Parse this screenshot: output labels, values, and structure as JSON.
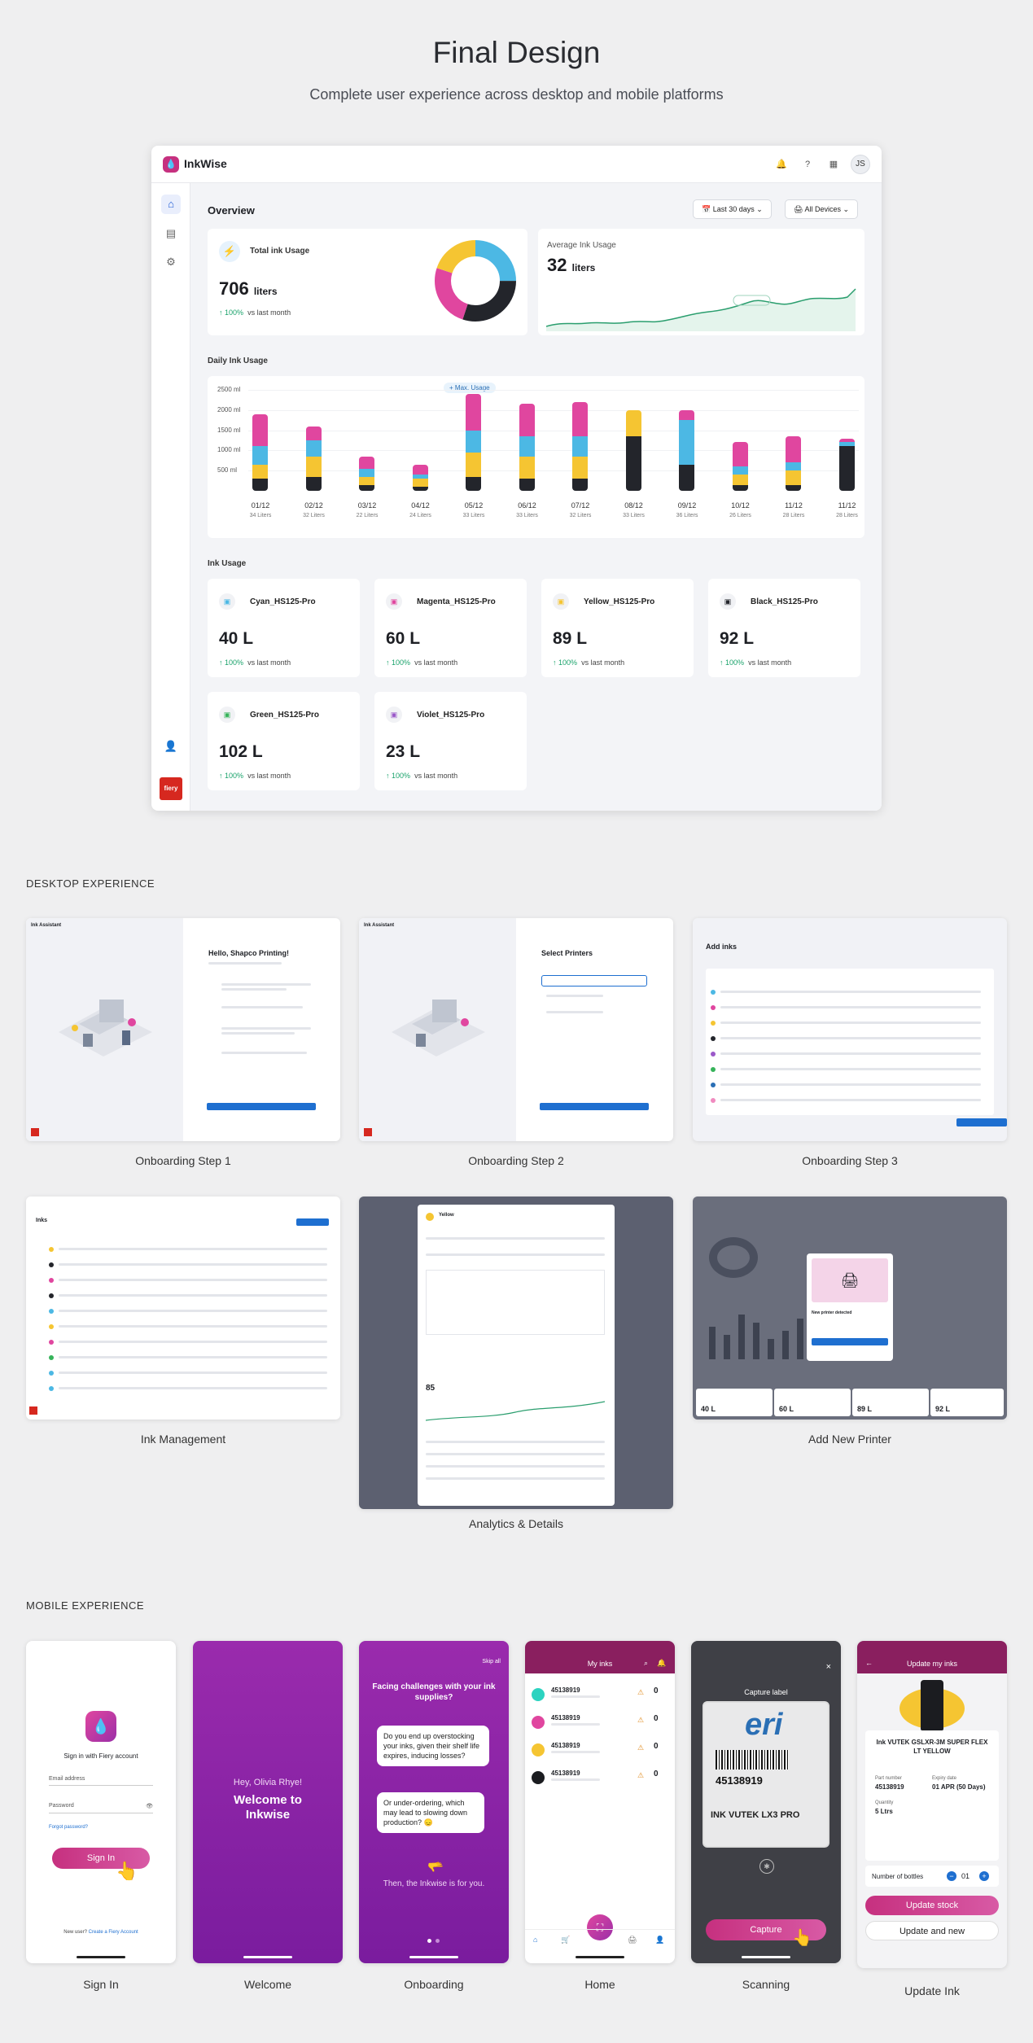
{
  "header": {
    "title": "Final Design",
    "subtitle": "Complete user experience across desktop and mobile platforms"
  },
  "dashboard": {
    "brand": "InkWise",
    "avatar": "JS",
    "overview": "Overview",
    "filter_date": "Last 30 days",
    "filter_devices": "All Devices",
    "total": {
      "label": "Total ink Usage",
      "value": "706",
      "unit": "liters",
      "pct": "100%",
      "vs": "vs last month"
    },
    "average": {
      "label": "Average Ink Usage",
      "value": "32",
      "unit": "liters"
    },
    "donut": [
      {
        "color": "#4cb8e4",
        "value": 25
      },
      {
        "color": "#23252b",
        "value": 30
      },
      {
        "color": "#e0469f",
        "value": 25
      },
      {
        "color": "#f5c532",
        "value": 20
      }
    ],
    "daily_title": "Daily Ink Usage",
    "max_usage": "Max. Usage",
    "ink_usage_title": "Ink Usage",
    "inks": [
      {
        "name": "Cyan_HS125-Pro",
        "value": "40 L",
        "pct": "100%",
        "vs": "vs last month",
        "color": "#4cb8e4"
      },
      {
        "name": "Magenta_HS125-Pro",
        "value": "60 L",
        "pct": "100%",
        "vs": "vs last month",
        "color": "#e0469f"
      },
      {
        "name": "Yellow_HS125-Pro",
        "value": "89 L",
        "pct": "100%",
        "vs": "vs last month",
        "color": "#f5c532"
      },
      {
        "name": "Black_HS125-Pro",
        "value": "92 L",
        "pct": "100%",
        "vs": "vs last month",
        "color": "#23252b"
      },
      {
        "name": "Green_HS125-Pro",
        "value": "102 L",
        "pct": "100%",
        "vs": "vs last month",
        "color": "#36b35a"
      },
      {
        "name": "Violet_HS125-Pro",
        "value": "23 L",
        "pct": "100%",
        "vs": "vs last month",
        "color": "#9b59c9"
      }
    ]
  },
  "chart_data": {
    "type": "bar",
    "stacked": true,
    "categories": [
      "01/12",
      "02/12",
      "03/12",
      "04/12",
      "05/12",
      "06/12",
      "07/12",
      "08/12",
      "09/12",
      "10/12",
      "11/12",
      "11/12"
    ],
    "sublabels": [
      "34 Liters",
      "32 Liters",
      "22 Liters",
      "24 Liters",
      "33 Liters",
      "33 Liters",
      "32 Liters",
      "33 Liters",
      "36 Liters",
      "26 Liters",
      "28 Liters",
      "28 Liters"
    ],
    "yticks": [
      "2500 ml",
      "2000 ml",
      "1500 ml",
      "1000 ml",
      "500 ml"
    ],
    "ylim": [
      0,
      2500
    ],
    "series": [
      {
        "color": "#23252b",
        "values": [
          300,
          350,
          150,
          100,
          350,
          300,
          300,
          1350,
          650,
          150,
          150,
          1100
        ]
      },
      {
        "color": "#f5c532",
        "values": [
          350,
          500,
          200,
          200,
          600,
          550,
          550,
          650,
          0,
          250,
          350,
          0
        ]
      },
      {
        "color": "#4cb8e4",
        "values": [
          450,
          400,
          200,
          100,
          550,
          500,
          500,
          0,
          1100,
          200,
          200,
          100
        ]
      },
      {
        "color": "#e0469f",
        "values": [
          800,
          350,
          300,
          250,
          900,
          800,
          850,
          0,
          250,
          600,
          650,
          100
        ]
      }
    ]
  },
  "sections": {
    "desktop": "DESKTOP EXPERIENCE",
    "mobile": "MOBILE EXPERIENCE"
  },
  "desktop_screens": [
    {
      "caption": "Onboarding Step 1",
      "heading": "Hello, Shapco Printing!",
      "app": "Ink Assistant"
    },
    {
      "caption": "Onboarding Step 2",
      "heading": "Select Printers",
      "app": "Ink Assistant"
    },
    {
      "caption": "Onboarding Step 3",
      "heading": "Add inks"
    },
    {
      "caption": "Ink Management",
      "heading": "Inks"
    },
    {
      "caption": "Analytics & Details",
      "heading": "Yellow"
    },
    {
      "caption": "Add New Printer",
      "heading": "New printer detected"
    }
  ],
  "mobile_screens": {
    "signin": {
      "caption": "Sign In",
      "title": "Sign in with Fiery account",
      "email": "Email address",
      "password": "Password",
      "forgot": "Forgot password?",
      "button": "Sign In",
      "new_user": "New user?",
      "create": "Create a Fiery Account"
    },
    "welcome": {
      "caption": "Welcome",
      "greeting": "Hey, Olivia Rhye!",
      "title": "Welcome to Inkwise"
    },
    "onboarding": {
      "caption": "Onboarding",
      "skip": "Skip all",
      "title": "Facing challenges with your ink supplies?",
      "q1": "Do you end up overstocking your inks, given their shelf life expires, inducing losses?",
      "q2": "Or under-ordering, which may lead to slowing down production? 😞",
      "answer": "Then, the Inkwise is for you."
    },
    "home": {
      "caption": "Home",
      "title": "My inks",
      "items": [
        {
          "id": "45138919",
          "color": "#2cd3c0",
          "count": "0"
        },
        {
          "id": "45138919",
          "color": "#e0469f",
          "count": "0"
        },
        {
          "id": "45138919",
          "color": "#f5c532",
          "count": "0"
        },
        {
          "id": "45138919",
          "color": "#1b1c20",
          "count": "0"
        }
      ]
    },
    "scanning": {
      "caption": "Scanning",
      "title": "Capture label",
      "code": "45138919",
      "label_text": "INK VUTEK LX3 PRO",
      "button": "Capture"
    },
    "update": {
      "caption": "Update Ink",
      "title": "Update my inks",
      "product": "Ink VUTEK GSLXR-3M SUPER FLEX LT YELLOW",
      "part_label": "Part number",
      "part": "45138919",
      "expiry_label": "Expiry date",
      "expiry": "01 APR (50 Days)",
      "qty_label": "Quantity",
      "qty": "5 Ltrs",
      "bottles_label": "Number of bottles",
      "bottles": "01",
      "btn_stock": "Update stock",
      "btn_new": "Update and new"
    }
  }
}
